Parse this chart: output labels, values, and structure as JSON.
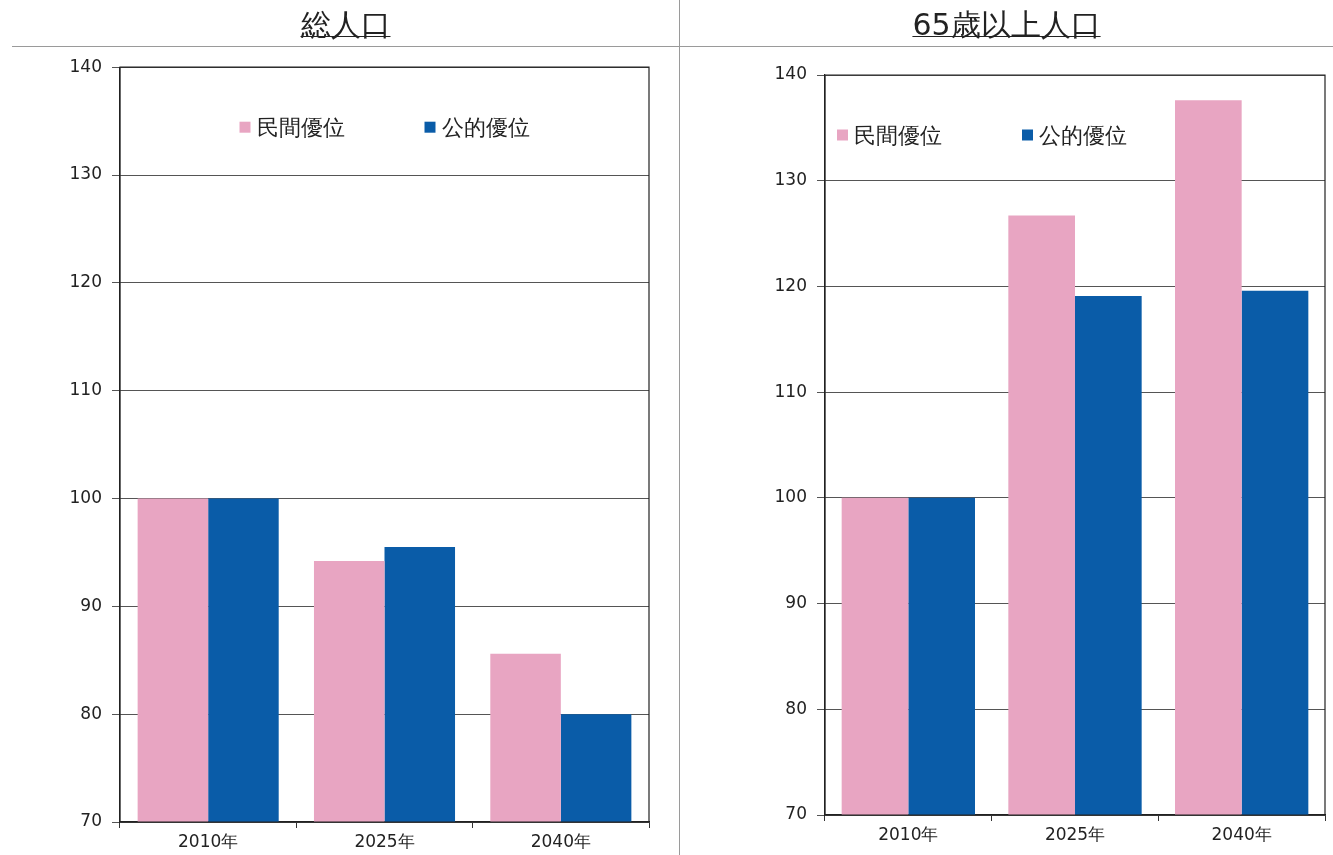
{
  "chart_data": [
    {
      "type": "bar",
      "title": "総人口",
      "categories": [
        "2010年",
        "2025年",
        "2040年"
      ],
      "series": [
        {
          "name": "民間優位",
          "color": "#e8a5c2",
          "values": [
            100,
            94.2,
            85.6
          ]
        },
        {
          "name": "公的優位",
          "color": "#0a5ca8",
          "values": [
            100,
            95.5,
            80
          ]
        }
      ],
      "ylim": [
        70,
        140
      ],
      "yticks": [
        70,
        80,
        90,
        100,
        110,
        120,
        130,
        140
      ],
      "grid": "y",
      "legend": "top"
    },
    {
      "type": "bar",
      "title": "65歳以上人口",
      "categories": [
        "2010年",
        "2025年",
        "2040年"
      ],
      "series": [
        {
          "name": "民間優位",
          "color": "#e8a5c2",
          "values": [
            100,
            126.7,
            137.6
          ]
        },
        {
          "name": "公的優位",
          "color": "#0a5ca8",
          "values": [
            100,
            119.1,
            119.6
          ]
        }
      ],
      "ylim": [
        70,
        140
      ],
      "yticks": [
        70,
        80,
        90,
        100,
        110,
        120,
        130,
        140
      ],
      "grid": "y",
      "legend": "top left"
    }
  ]
}
